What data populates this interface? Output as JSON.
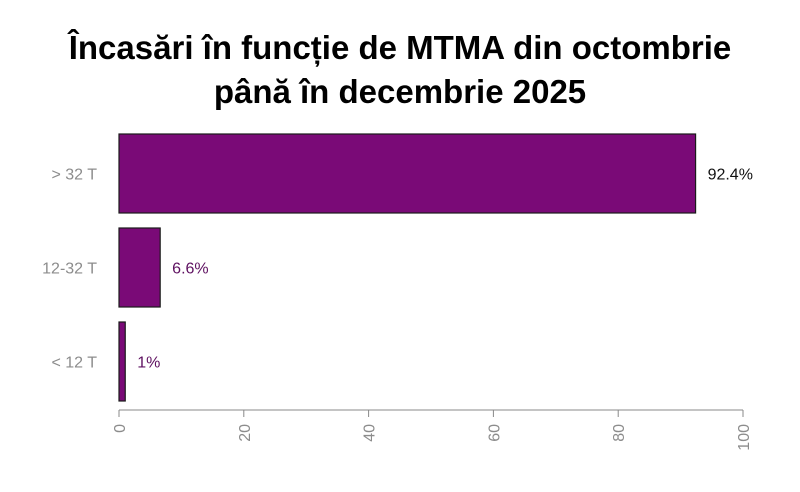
{
  "colors": {
    "bar": "#7a0a77",
    "bar_stroke": "#1a1a1a",
    "label": "#5e1060",
    "axis": "#888888",
    "tick_text": "#8c8c8c"
  },
  "chart_data": {
    "type": "bar",
    "orientation": "horizontal",
    "title_lines": [
      "Încasări în funcție de MTMA din octombrie",
      "până în decembrie 2025"
    ],
    "categories": [
      "> 32 T",
      "12-32 T",
      "< 12 T"
    ],
    "values": [
      92.4,
      6.6,
      1
    ],
    "data_labels": [
      "92.4%",
      "6.6%",
      "1%"
    ],
    "xlim": [
      0,
      100
    ],
    "xticks": [
      "0",
      "20",
      "40",
      "60",
      "80",
      "100"
    ],
    "grid": false,
    "legend": "none"
  }
}
